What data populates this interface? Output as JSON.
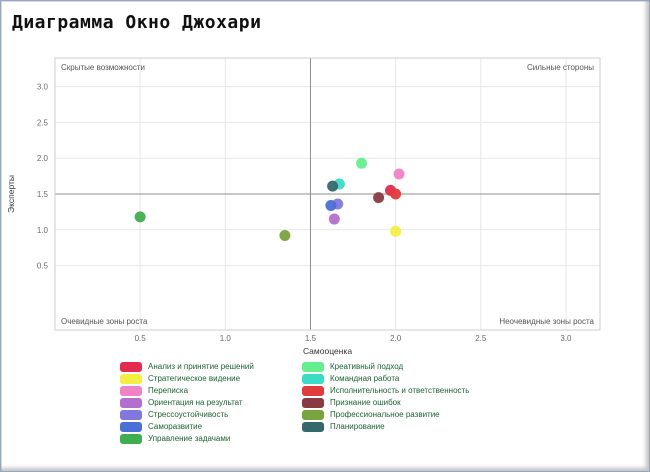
{
  "title": "Диаграмма Окно Джохари",
  "chart_data": {
    "type": "scatter",
    "title": "Диаграмма Окно Джохари",
    "xlabel": "Самооценка",
    "ylabel": "Эксперты",
    "xlim": [
      0,
      3.2
    ],
    "ylim": [
      -0.4,
      3.4
    ],
    "xticks": [
      0.5,
      1.0,
      1.5,
      2.0,
      2.5,
      3.0
    ],
    "yticks": [
      0.5,
      1.0,
      1.5,
      2.0,
      2.5,
      3.0
    ],
    "grid": true,
    "legend_position": "bottom",
    "legend_columns": 2,
    "legend_split_index": 7,
    "quadrant_divider": {
      "x": 1.5,
      "y": 1.5
    },
    "quadrant_labels": {
      "top_left": "Скрытые возможности",
      "top_right": "Сильные стороны",
      "bottom_left": "Очевидные зоны роста",
      "bottom_right": "Неочевидные зоны роста"
    },
    "series": [
      {
        "name": "Анализ и принятие решений",
        "color": "#e32b4d",
        "points": [
          [
            1.97,
            1.55
          ]
        ]
      },
      {
        "name": "Стратегическое видение",
        "color": "#f3ee3f",
        "points": [
          [
            2.0,
            0.98
          ]
        ]
      },
      {
        "name": "Переписка",
        "color": "#f083c5",
        "points": [
          [
            2.02,
            1.78
          ]
        ]
      },
      {
        "name": "Ориентация на результат",
        "color": "#b36fd0",
        "points": [
          [
            1.64,
            1.15
          ]
        ]
      },
      {
        "name": "Стрессоустойчивость",
        "color": "#8377dd",
        "points": [
          [
            1.66,
            1.36
          ]
        ]
      },
      {
        "name": "Саморазвитие",
        "color": "#4a6fd6",
        "points": [
          [
            1.62,
            1.34
          ]
        ]
      },
      {
        "name": "Управление задачами",
        "color": "#3fae4e",
        "points": [
          [
            0.5,
            1.18
          ]
        ]
      },
      {
        "name": "Креативный подход",
        "color": "#63ef8d",
        "points": [
          [
            1.8,
            1.93
          ]
        ]
      },
      {
        "name": "Командная работа",
        "color": "#3bdcc6",
        "points": [
          [
            1.67,
            1.64
          ]
        ]
      },
      {
        "name": "Исполнительность и ответственность",
        "color": "#e23b3b",
        "points": [
          [
            2.0,
            1.5
          ]
        ]
      },
      {
        "name": "Признание ошибок",
        "color": "#8a3b41",
        "points": [
          [
            1.9,
            1.45
          ]
        ]
      },
      {
        "name": "Профессиональное развитие",
        "color": "#79a33c",
        "points": [
          [
            1.35,
            0.92
          ]
        ]
      },
      {
        "name": "Планирование",
        "color": "#34696b",
        "points": [
          [
            1.63,
            1.61
          ]
        ]
      }
    ]
  }
}
